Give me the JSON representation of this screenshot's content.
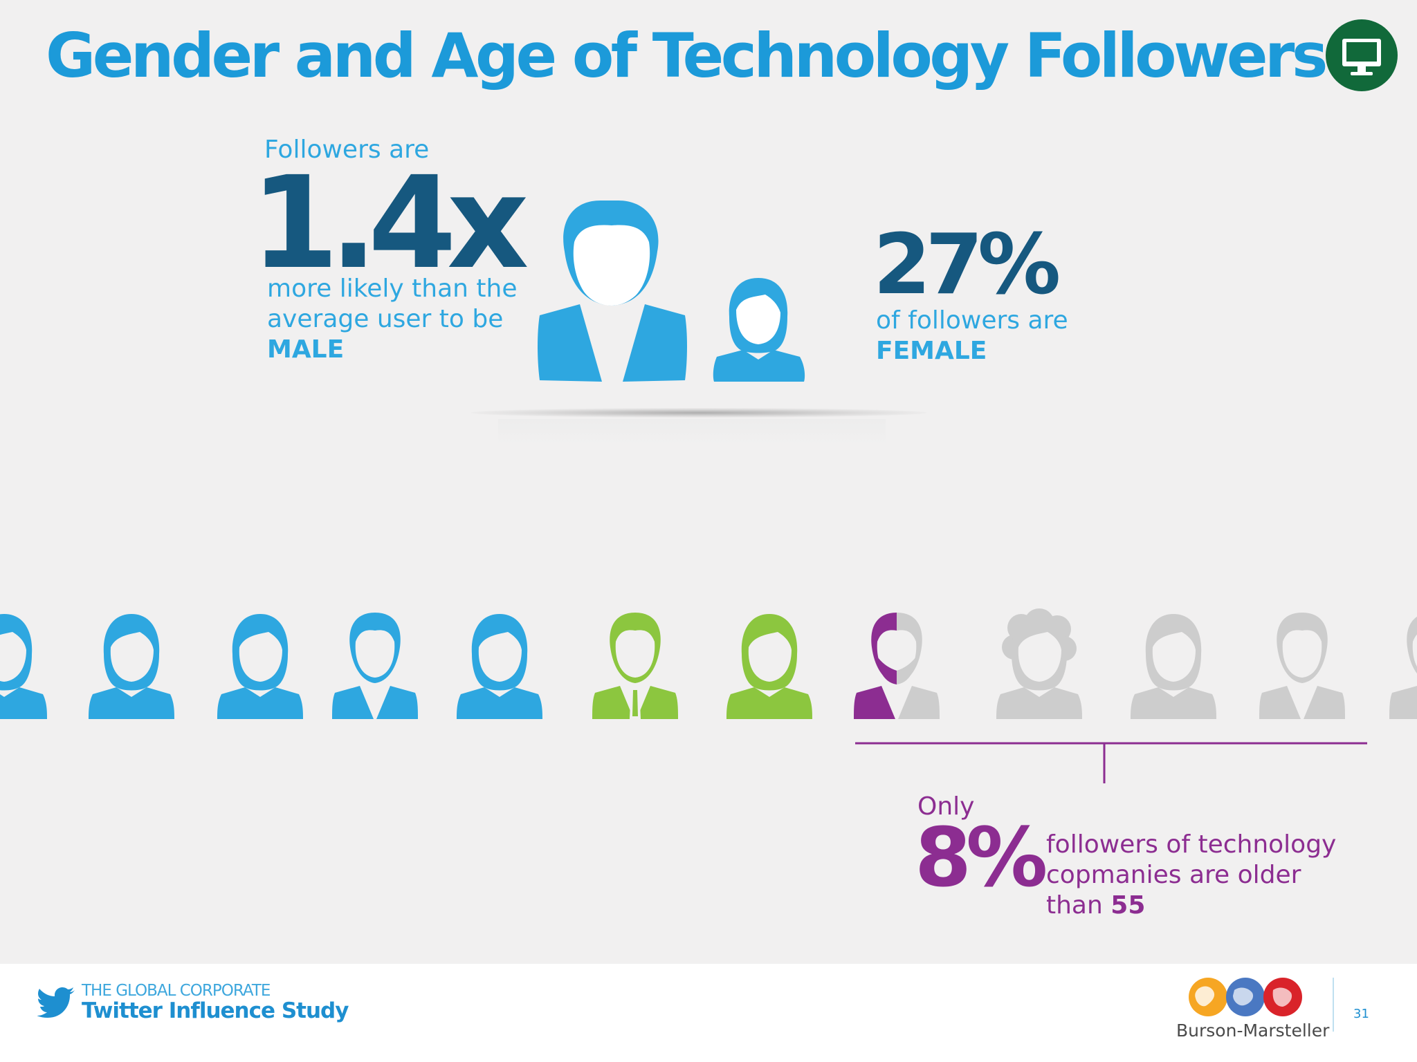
{
  "title": "Gender and Age of Technology Followers",
  "icon": "desktop-monitor-icon",
  "male_stat": {
    "prefix": "Followers are",
    "value": "1.4x",
    "line1": "more likely than the",
    "line2": "average user to be",
    "emph": "MALE"
  },
  "female_stat": {
    "value": "27%",
    "line1": "of followers are",
    "emph": "FEMALE"
  },
  "age_stat": {
    "prefix": "Only",
    "value": "8%",
    "line1": "followers of technology",
    "line2": "copmanies are older",
    "line3_pre": "than ",
    "line3_emph": "55"
  },
  "footer": {
    "study_sub": "THE GLOBAL CORPORATE",
    "study_title": "Twitter Influence Study",
    "brand": "Burson-Marsteller",
    "page": "31"
  },
  "colors": {
    "title": "#1c9ad9",
    "blue_figure": "#2ea7e0",
    "green_figure": "#8cc63f",
    "grey_figure": "#cdcdcd",
    "purple_accent": "#8c2d91",
    "badge": "#11693a"
  },
  "row_figures": [
    {
      "type": "woman",
      "color": "blue"
    },
    {
      "type": "man",
      "color": "blue"
    },
    {
      "type": "woman",
      "color": "blue"
    },
    {
      "type": "man",
      "color": "blue"
    },
    {
      "type": "woman",
      "color": "blue"
    },
    {
      "type": "man-tie",
      "color": "green"
    },
    {
      "type": "woman",
      "color": "green"
    },
    {
      "type": "bearded-man",
      "color": "purple-grey"
    },
    {
      "type": "curly-woman",
      "color": "grey"
    },
    {
      "type": "woman",
      "color": "grey"
    },
    {
      "type": "man",
      "color": "grey"
    },
    {
      "type": "partial",
      "color": "grey"
    }
  ]
}
